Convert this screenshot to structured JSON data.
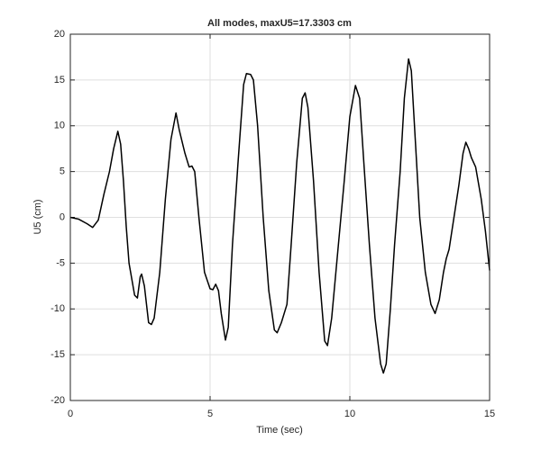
{
  "chart_data": {
    "type": "line",
    "title": "All modes, maxU5=17.3303 cm",
    "xlabel": "Time (sec)",
    "ylabel": "U5 (cm)",
    "x": [
      0,
      0.3,
      0.6,
      0.8,
      1.0,
      1.2,
      1.4,
      1.55,
      1.7,
      1.8,
      1.9,
      2.0,
      2.1,
      2.3,
      2.4,
      2.5,
      2.55,
      2.65,
      2.8,
      2.9,
      3.0,
      3.2,
      3.4,
      3.6,
      3.78,
      3.9,
      4.1,
      4.25,
      4.35,
      4.45,
      4.6,
      4.8,
      5.0,
      5.1,
      5.2,
      5.3,
      5.4,
      5.55,
      5.65,
      5.8,
      6.0,
      6.2,
      6.3,
      6.45,
      6.55,
      6.7,
      6.9,
      7.1,
      7.3,
      7.4,
      7.55,
      7.75,
      7.9,
      8.1,
      8.3,
      8.4,
      8.5,
      8.7,
      8.9,
      9.1,
      9.2,
      9.35,
      9.5,
      9.8,
      10.0,
      10.2,
      10.35,
      10.5,
      10.7,
      10.9,
      11.1,
      11.2,
      11.3,
      11.45,
      11.6,
      11.8,
      11.95,
      12.1,
      12.2,
      12.35,
      12.5,
      12.7,
      12.9,
      13.05,
      13.2,
      13.35,
      13.45,
      13.55,
      13.7,
      13.9,
      14.05,
      14.15,
      14.25,
      14.35,
      14.5,
      14.7,
      14.85,
      15.0
    ],
    "values": [
      0,
      -0.2,
      -0.7,
      -1.1,
      -0.3,
      2.5,
      5,
      7.5,
      9.4,
      8,
      4,
      -1,
      -5,
      -8.5,
      -8.8,
      -6.5,
      -6.2,
      -7.5,
      -11.5,
      -11.7,
      -11,
      -6,
      2,
      8.5,
      11.4,
      9.5,
      7,
      5.5,
      5.6,
      5,
      0,
      -6,
      -7.8,
      -7.9,
      -7.3,
      -8,
      -10.5,
      -13.4,
      -12,
      -3,
      6,
      14.5,
      15.7,
      15.6,
      15,
      10,
      0,
      -8,
      -12.3,
      -12.6,
      -11.5,
      -9.5,
      -3,
      6,
      13,
      13.6,
      12,
      4,
      -6,
      -13.5,
      -14,
      -11,
      -6,
      4,
      11,
      14.4,
      13,
      6,
      -3,
      -11,
      -16,
      -17,
      -16,
      -10,
      -3,
      5,
      13,
      17.3,
      16,
      8,
      0,
      -6,
      -9.5,
      -10.5,
      -9,
      -6,
      -4.5,
      -3.5,
      -0.5,
      3.5,
      7,
      8.2,
      7.5,
      6.5,
      5.5,
      2,
      -1.5,
      -5.8
    ],
    "color": "#000000",
    "xlim": [
      0,
      15
    ],
    "xticks": [
      0,
      5,
      10,
      15
    ],
    "ylim": [
      -20,
      20
    ],
    "yticks": [
      -20,
      -15,
      -10,
      -5,
      0,
      5,
      10,
      15,
      20
    ],
    "grid": true
  }
}
